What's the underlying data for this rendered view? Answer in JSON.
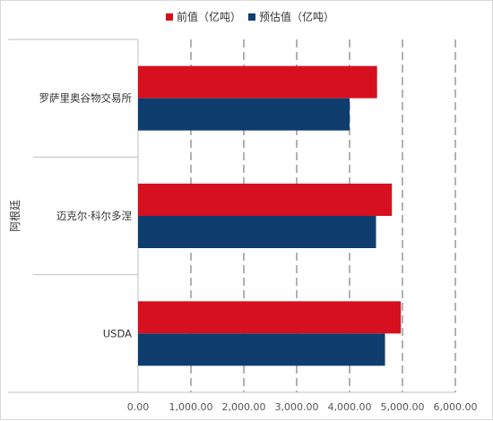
{
  "chart_data": {
    "type": "bar",
    "orientation": "horizontal",
    "group_label": "阿根廷",
    "categories": [
      "罗萨里奥谷物交易所",
      "迈克尔·科尔多涅",
      "USDA"
    ],
    "series": [
      {
        "name": "前值（亿吨）",
        "color": "#d7101f",
        "values": [
          4520,
          4800,
          4970
        ]
      },
      {
        "name": "预估值（亿吨）",
        "color": "#0f3d6e",
        "values": [
          4000,
          4500,
          4670
        ]
      }
    ],
    "x_ticks": [
      "0.00",
      "1,000.00",
      "2,000.00",
      "3,000.00",
      "4,000.00",
      "5,000.00",
      "6,000.00"
    ],
    "xlim": [
      0,
      6000
    ],
    "grid": "vertical dashed",
    "legend_position": "top-center"
  }
}
